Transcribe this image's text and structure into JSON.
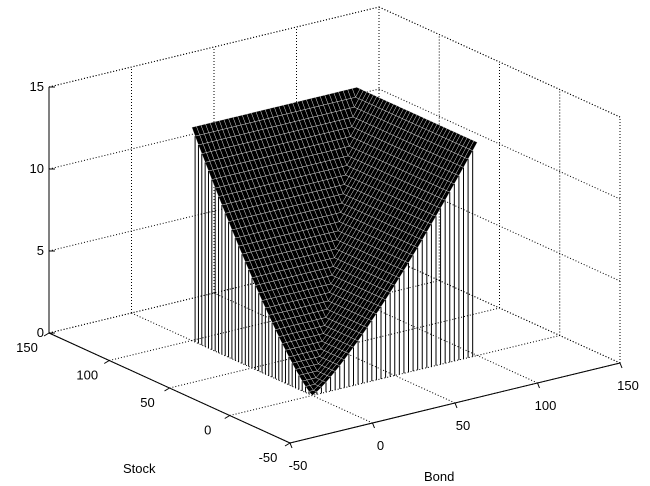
{
  "chart_data": {
    "type": "surface",
    "axes": {
      "x": {
        "label": "Bond",
        "range": [
          -50,
          150
        ],
        "ticks": [
          -50,
          0,
          50,
          100,
          150
        ],
        "tick_labels": [
          "-50",
          "0",
          "50",
          "100",
          "150"
        ]
      },
      "y": {
        "label": "Stock",
        "range": [
          -50,
          150
        ],
        "ticks": [
          -50,
          0,
          50,
          100,
          150
        ],
        "tick_labels": [
          "-50",
          "0",
          "50",
          "100",
          "150"
        ]
      },
      "z": {
        "label": "",
        "range": [
          0,
          15
        ],
        "ticks": [
          0,
          5,
          10,
          15
        ],
        "tick_labels": [
          "0",
          "5",
          "10",
          "15"
        ]
      }
    },
    "grid": true,
    "box": true,
    "surface": {
      "domain": {
        "x": [
          0,
          100
        ],
        "y": [
          0,
          100
        ]
      },
      "z_corner_values": {
        "x0_y0": 0,
        "x100_y0": 13,
        "x0_y100": 13,
        "x100_y100": 13
      },
      "z_at_center": 5.5,
      "description_shape": "funnel rising from 0 near bond=0, stock=0 to about 13 at the far edges",
      "mesh_color": "#000000",
      "wire_color": "#ffffff"
    }
  }
}
